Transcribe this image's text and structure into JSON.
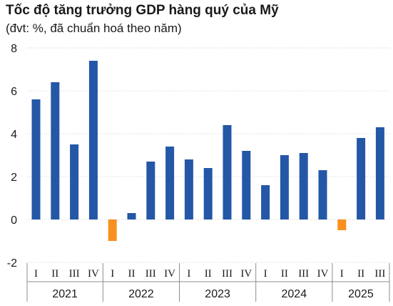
{
  "chart_data": {
    "type": "bar",
    "title": "Tốc độ tăng trưởng GDP hàng quý của Mỹ",
    "subtitle": "(đvt: %, đã chuẩn hoá theo năm)",
    "xlabel": "",
    "ylabel": "",
    "ylim": [
      -2,
      8
    ],
    "yticks": [
      "8",
      "6",
      "4",
      "2",
      "0",
      "-2"
    ],
    "grid": true,
    "colors": {
      "positive": "#2457A6",
      "negative": "#F7901E",
      "grid": "#d0d0d0",
      "axis": "#8c8c8c"
    },
    "groups": [
      {
        "label": "2021",
        "quarters": [
          "I",
          "II",
          "III",
          "IV"
        ],
        "values": [
          5.6,
          6.4,
          3.5,
          7.4
        ]
      },
      {
        "label": "2022",
        "quarters": [
          "I",
          "II",
          "III",
          "IV"
        ],
        "values": [
          -1.0,
          0.3,
          2.7,
          3.4
        ]
      },
      {
        "label": "2023",
        "quarters": [
          "I",
          "II",
          "III",
          "IV"
        ],
        "values": [
          2.8,
          2.4,
          4.4,
          3.2
        ]
      },
      {
        "label": "2024",
        "quarters": [
          "I",
          "II",
          "III",
          "IV"
        ],
        "values": [
          1.6,
          3.0,
          3.1,
          2.3
        ]
      },
      {
        "label": "2025",
        "quarters": [
          "I",
          "II",
          "III"
        ],
        "values": [
          -0.5,
          3.8,
          4.3
        ]
      }
    ]
  }
}
